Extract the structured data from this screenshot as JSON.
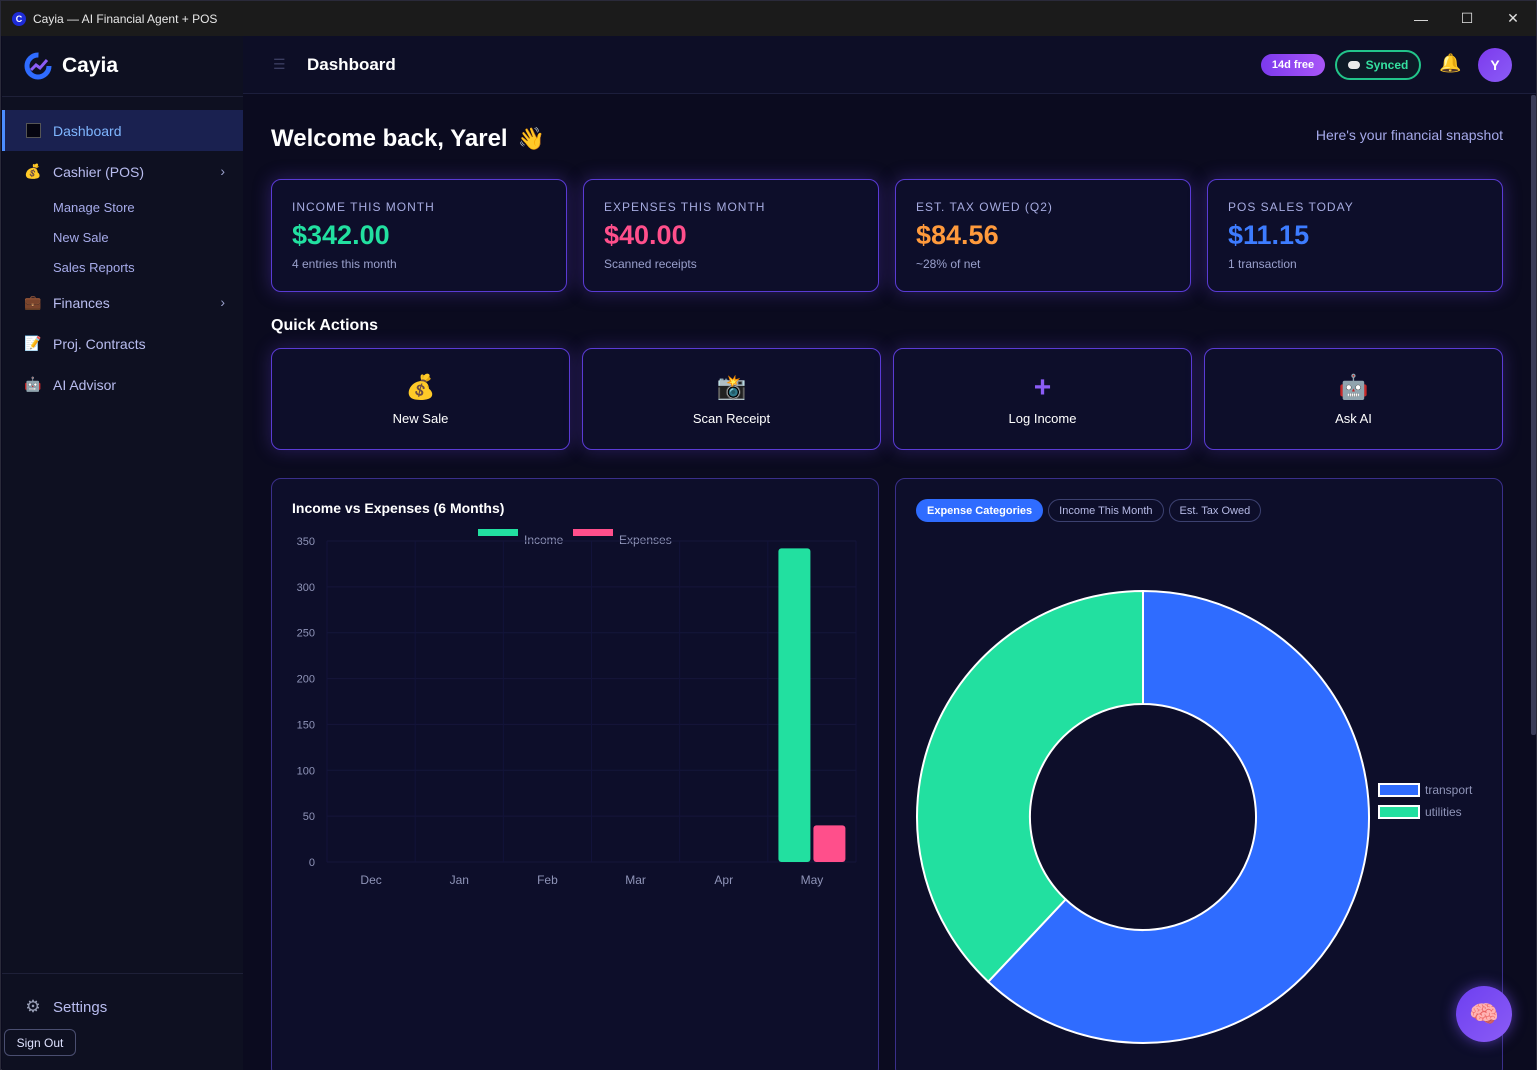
{
  "window": {
    "title": "Cayia — AI Financial Agent + POS",
    "app_icon_letter": "C"
  },
  "brand": {
    "name": "Cayia"
  },
  "sidebar": {
    "items": [
      {
        "label": "Dashboard",
        "icon": "square-icon"
      },
      {
        "label": "Cashier (POS)",
        "icon": "money-bag-icon"
      },
      {
        "label": "Finances",
        "icon": "briefcase-icon"
      },
      {
        "label": "Proj. Contracts",
        "icon": "memo-icon"
      },
      {
        "label": "AI Advisor",
        "icon": "robot-icon"
      }
    ],
    "sub_items": [
      "Manage Store",
      "New Sale",
      "Sales Reports"
    ],
    "settings_label": "Settings",
    "signout_label": "Sign Out"
  },
  "header": {
    "title": "Dashboard",
    "trial_badge": "14d free",
    "sync_label": "Synced",
    "avatar_initial": "Y"
  },
  "main": {
    "welcome": "Welcome back, Yarel",
    "welcome_emoji": "👋",
    "snapshot": "Here's your financial snapshot",
    "stats": [
      {
        "label": "INCOME THIS MONTH",
        "value": "$342.00",
        "sub": "4 entries this month",
        "color": "#22e0a0"
      },
      {
        "label": "EXPENSES THIS MONTH",
        "value": "$40.00",
        "sub": "Scanned receipts",
        "color": "#ff4f8b"
      },
      {
        "label": "EST. TAX OWED (Q2)",
        "value": "$84.56",
        "sub": "~28% of net",
        "color": "#ff9a3c"
      },
      {
        "label": "POS SALES TODAY",
        "value": "$11.15",
        "sub": "1 transaction",
        "color": "#3d7cff"
      }
    ],
    "quick_actions_title": "Quick Actions",
    "quick_actions": [
      {
        "label": "New Sale",
        "icon": "💰"
      },
      {
        "label": "Scan Receipt",
        "icon": "📸"
      },
      {
        "label": "Log Income",
        "icon": "➕"
      },
      {
        "label": "Ask AI",
        "icon": "🤖"
      }
    ]
  },
  "bar_panel": {
    "title": "Income vs Expenses (6 Months)"
  },
  "donut_panel": {
    "tabs": [
      "Expense Categories",
      "Income This Month",
      "Est. Tax Owed"
    ]
  },
  "chart_data": [
    {
      "type": "bar",
      "title": "Income vs Expenses (6 Months)",
      "categories": [
        "Dec",
        "Jan",
        "Feb",
        "Mar",
        "Apr",
        "May"
      ],
      "series": [
        {
          "name": "Income",
          "color": "#22e0a0",
          "values": [
            0,
            0,
            0,
            0,
            0,
            342
          ]
        },
        {
          "name": "Expenses",
          "color": "#ff4f8b",
          "values": [
            0,
            0,
            0,
            0,
            0,
            40
          ]
        }
      ],
      "yticks": [
        0,
        50,
        100,
        150,
        200,
        250,
        300,
        350
      ],
      "ylim": [
        0,
        350
      ],
      "legend": "top-center",
      "grid": true
    },
    {
      "type": "pie",
      "variant": "donut",
      "labels": [
        "transport",
        "utilities"
      ],
      "values": [
        62,
        38
      ],
      "colors": [
        "#2f6cff",
        "#22e0a0"
      ],
      "legend": "right"
    }
  ]
}
